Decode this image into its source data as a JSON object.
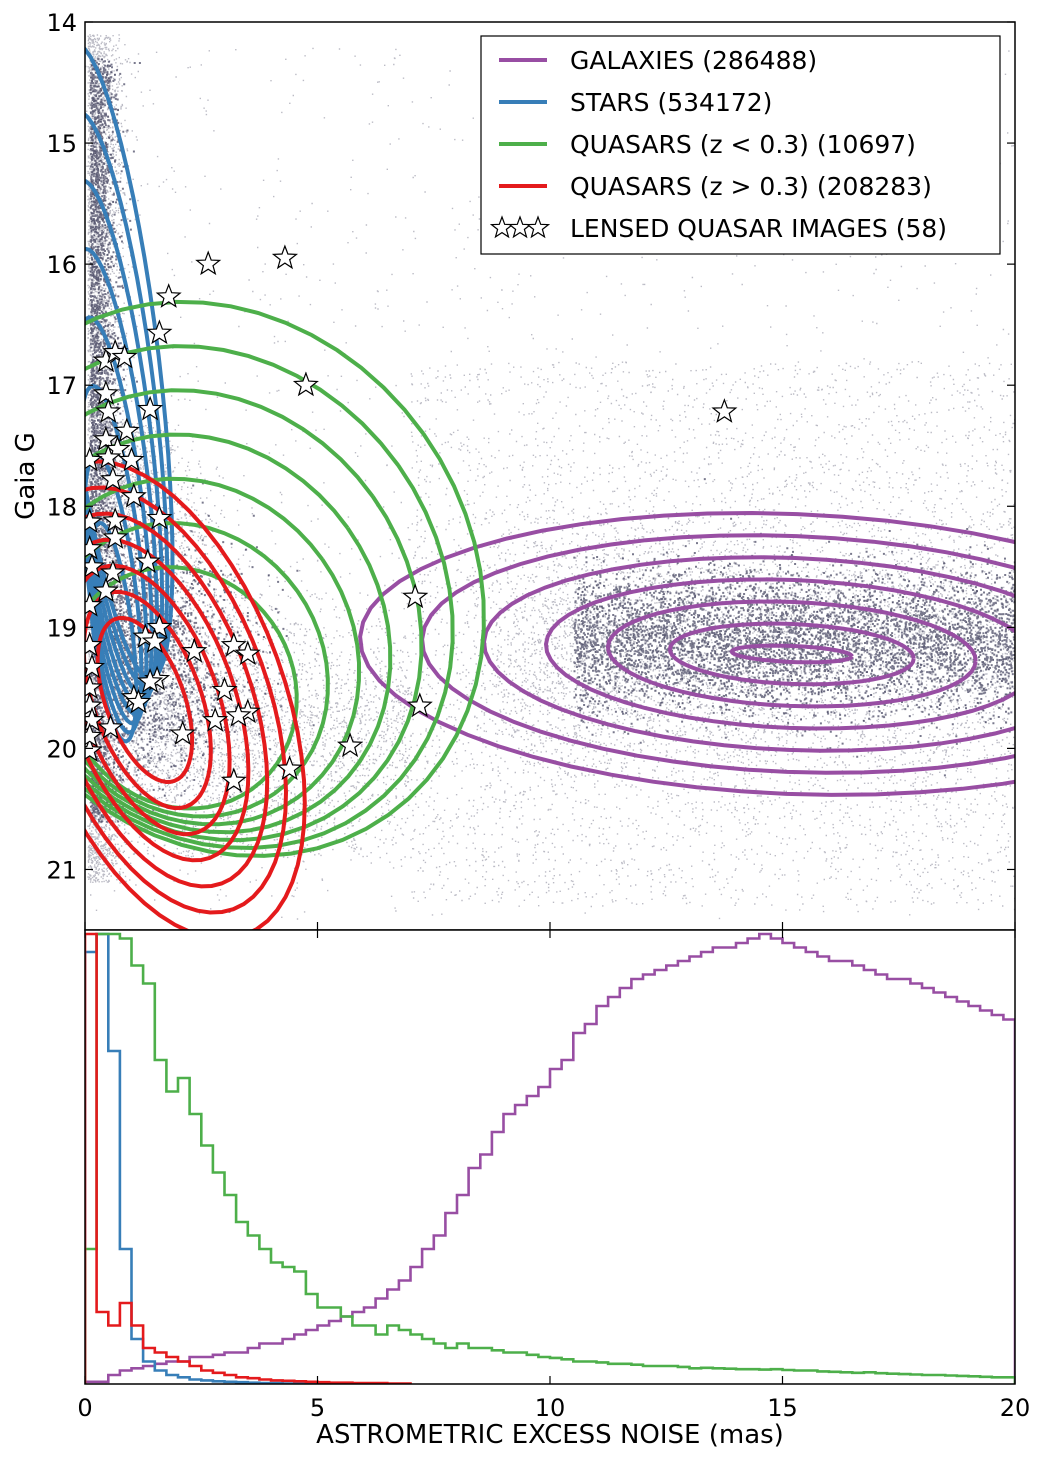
{
  "colors": {
    "galaxies": "#984ea3",
    "stars": "#377eb8",
    "qso_low": "#4daf4a",
    "qso_high": "#e41a1c",
    "scatter": "#0b0b30"
  },
  "chart_data": [
    {
      "type": "scatter",
      "xlim": [
        0,
        20
      ],
      "ylim": [
        21.5,
        14
      ],
      "y_inverted": true,
      "xlabel": "",
      "ylabel": "Gaia G",
      "y_ticks": [
        14,
        15,
        16,
        17,
        18,
        19,
        20,
        21
      ],
      "legend_position": "top-right",
      "legend": [
        {
          "label": "GALAXIES  (286488)",
          "color_key": "galaxies",
          "marker": "line"
        },
        {
          "label": "STARS (534172)",
          "color_key": "stars",
          "marker": "line"
        },
        {
          "label": "QUASARS (z < 0.3) (10697)",
          "color_key": "qso_low",
          "marker": "line"
        },
        {
          "label": "QUASARS (z > 0.3) (208283)",
          "color_key": "qso_high",
          "marker": "line"
        },
        {
          "label": "LENSED QUASAR IMAGES (58)",
          "color_key": "",
          "marker": "star"
        }
      ],
      "lensed_quasar_images": [
        [
          2.65,
          16.0
        ],
        [
          4.3,
          15.95
        ],
        [
          1.8,
          16.27
        ],
        [
          1.6,
          16.57
        ],
        [
          4.75,
          17.0
        ],
        [
          13.75,
          17.22
        ],
        [
          0.45,
          16.8
        ],
        [
          0.65,
          16.73
        ],
        [
          0.85,
          16.77
        ],
        [
          0.45,
          17.07
        ],
        [
          1.4,
          17.2
        ],
        [
          0.5,
          17.22
        ],
        [
          0.45,
          17.45
        ],
        [
          0.9,
          17.38
        ],
        [
          0.7,
          17.53
        ],
        [
          0.5,
          17.6
        ],
        [
          0.1,
          17.62
        ],
        [
          1.0,
          17.62
        ],
        [
          0.6,
          17.78
        ],
        [
          1.05,
          17.92
        ],
        [
          0.1,
          18.13
        ],
        [
          0.65,
          18.12
        ],
        [
          1.6,
          18.1
        ],
        [
          0.65,
          18.26
        ],
        [
          0.1,
          18.35
        ],
        [
          0.15,
          18.5
        ],
        [
          1.35,
          18.46
        ],
        [
          0.6,
          18.55
        ],
        [
          0.45,
          18.7
        ],
        [
          0.1,
          18.82
        ],
        [
          7.1,
          18.75
        ],
        [
          1.6,
          19.0
        ],
        [
          1.3,
          19.08
        ],
        [
          1.5,
          19.12
        ],
        [
          0.1,
          19.15
        ],
        [
          2.35,
          19.2
        ],
        [
          3.2,
          19.15
        ],
        [
          3.5,
          19.22
        ],
        [
          0.15,
          19.33
        ],
        [
          1.55,
          19.43
        ],
        [
          1.4,
          19.45
        ],
        [
          0.1,
          19.5
        ],
        [
          3.0,
          19.52
        ],
        [
          1.05,
          19.58
        ],
        [
          1.15,
          19.62
        ],
        [
          7.2,
          19.65
        ],
        [
          0.1,
          19.65
        ],
        [
          3.5,
          19.7
        ],
        [
          3.3,
          19.73
        ],
        [
          0.15,
          19.77
        ],
        [
          2.8,
          19.77
        ],
        [
          0.55,
          19.83
        ],
        [
          2.1,
          19.88
        ],
        [
          5.7,
          19.98
        ],
        [
          0.1,
          20.02
        ],
        [
          4.4,
          20.17
        ],
        [
          3.2,
          20.27
        ],
        [
          0.1,
          19.9
        ]
      ]
    },
    {
      "type": "line",
      "step": true,
      "xlim": [
        0,
        20
      ],
      "xlabel": "ASTROMETRIC EXCESS NOISE (mas)",
      "ylabel": "",
      "x_ticks": [
        0,
        5,
        10,
        15,
        20
      ],
      "normalization": "each histogram scaled to its peak",
      "bin_width": 0.25,
      "series": [
        {
          "color_key": "galaxies",
          "values": [
            0.005,
            0.005,
            0.02,
            0.03,
            0.035,
            0.04,
            0.045,
            0.05,
            0.05,
            0.06,
            0.06,
            0.065,
            0.07,
            0.07,
            0.08,
            0.09,
            0.09,
            0.1,
            0.11,
            0.12,
            0.13,
            0.14,
            0.15,
            0.16,
            0.17,
            0.19,
            0.21,
            0.23,
            0.26,
            0.3,
            0.33,
            0.38,
            0.42,
            0.48,
            0.51,
            0.56,
            0.6,
            0.62,
            0.64,
            0.66,
            0.7,
            0.72,
            0.78,
            0.8,
            0.84,
            0.86,
            0.88,
            0.9,
            0.91,
            0.92,
            0.93,
            0.94,
            0.95,
            0.96,
            0.97,
            0.97,
            0.98,
            0.99,
            1.0,
            0.99,
            0.98,
            0.97,
            0.96,
            0.95,
            0.94,
            0.94,
            0.93,
            0.92,
            0.91,
            0.9,
            0.9,
            0.89,
            0.88,
            0.87,
            0.86,
            0.85,
            0.84,
            0.83,
            0.82,
            0.81
          ]
        },
        {
          "color_key": "stars",
          "values": [
            0.96,
            1.0,
            0.74,
            0.3,
            0.1,
            0.05,
            0.03,
            0.02,
            0.015,
            0.01,
            0.008,
            0.006,
            0.005,
            0.004,
            0.003,
            0.002,
            0.002,
            0.001,
            0.001,
            0.001
          ]
        },
        {
          "color_key": "qso_low",
          "values": [
            0.3,
            1.0,
            1.0,
            0.99,
            0.93,
            0.89,
            0.72,
            0.65,
            0.68,
            0.6,
            0.53,
            0.47,
            0.42,
            0.36,
            0.33,
            0.3,
            0.27,
            0.26,
            0.25,
            0.2,
            0.17,
            0.17,
            0.15,
            0.13,
            0.13,
            0.11,
            0.13,
            0.12,
            0.11,
            0.1,
            0.09,
            0.08,
            0.09,
            0.08,
            0.08,
            0.075,
            0.07,
            0.07,
            0.065,
            0.06,
            0.058,
            0.055,
            0.05,
            0.05,
            0.048,
            0.045,
            0.045,
            0.043,
            0.04,
            0.04,
            0.04,
            0.038,
            0.035,
            0.036,
            0.035,
            0.034,
            0.033,
            0.033,
            0.032,
            0.033,
            0.031,
            0.03,
            0.03,
            0.028,
            0.027,
            0.026,
            0.025,
            0.026,
            0.024,
            0.023,
            0.022,
            0.021,
            0.02,
            0.02,
            0.019,
            0.018,
            0.017,
            0.016,
            0.015,
            0.015
          ]
        },
        {
          "color_key": "qso_high",
          "values": [
            1.0,
            0.16,
            0.13,
            0.18,
            0.13,
            0.08,
            0.07,
            0.06,
            0.05,
            0.04,
            0.03,
            0.025,
            0.02,
            0.015,
            0.013,
            0.01,
            0.008,
            0.007,
            0.006,
            0.005,
            0.004,
            0.003,
            0.003,
            0.002,
            0.002,
            0.002,
            0.001,
            0.001
          ]
        }
      ]
    }
  ]
}
